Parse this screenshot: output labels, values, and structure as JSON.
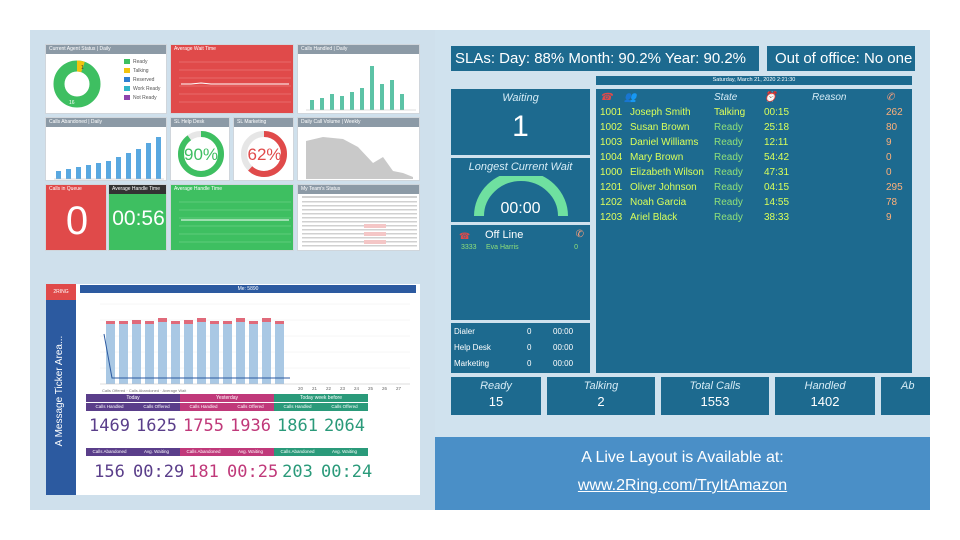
{
  "q1": {
    "panels": {
      "agent_status": "Current Agent Status | Daily",
      "avg_wait": "Average Wait Time",
      "calls_handled": "Calls Handled | Daily",
      "calls_abandoned": "Calls Abandoned | Daily",
      "sl_help_desk": "SL Help Desk",
      "sl_marketing": "SL Marketing",
      "daily_volume": "Daily Call Volume | Weekly",
      "calls_in_queue": "Calls in Queue",
      "avg_handle": "Average Handle Time",
      "avg_handle_chart": "Average Handle Time",
      "team_status": "My Team's Status"
    },
    "donut_top_value": "1",
    "donut_bottom_value": "16",
    "legend": [
      {
        "label": "Ready",
        "color": "#3ebf61"
      },
      {
        "label": "Talking",
        "color": "#f2c30f"
      },
      {
        "label": "Reserved",
        "color": "#2f7fd1"
      },
      {
        "label": "Work Ready",
        "color": "#2fb5c8"
      },
      {
        "label": "Not Ready",
        "color": "#8e44ad"
      }
    ],
    "sl_help_desk_value": "90%",
    "sl_marketing_value": "62%",
    "calls_in_queue_value": "0",
    "avg_handle_value": "00:56",
    "colors": {
      "red": "#e04a4a",
      "green": "#3ebf61",
      "teal": "#4bbf9f"
    }
  },
  "q3": {
    "ticker_label": "A Message Ticker Area...",
    "chart_title": "Me: 5890",
    "logo": "2RING",
    "y_left_label": "Calls Offered",
    "y_right_label": "Answered Seconds Time",
    "legend_offered": "Calls Offered",
    "legend_abandoned": "Calls Abandoned",
    "legend_avg": "Average Wait",
    "group_heads": [
      "Today",
      "Yesterday",
      "Today week before"
    ],
    "kpi_heads_top": [
      "Calls Handled",
      "Calls Offered",
      "Calls Handled",
      "Calls Offered",
      "Calls Handled",
      "Calls Offered"
    ],
    "kpi_values_top": [
      "1469",
      "1625",
      "1755",
      "1936",
      "1861",
      "2064"
    ],
    "kpi_heads_bottom": [
      "Calls Abandoned",
      "Avg. Waiting",
      "Calls Abandoned",
      "Avg. Waiting",
      "Calls Abandoned",
      "Avg. Waiting"
    ],
    "kpi_values_bottom": [
      "156",
      "00:29",
      "181",
      "00:25",
      "203",
      "00:24"
    ],
    "kpi_colors": [
      "#5a3e8a",
      "#5a3e8a",
      "#c0397a",
      "#c0397a",
      "#2a9a7a",
      "#2a9a7a"
    ]
  },
  "q2": {
    "banner_sla": "SLAs: Day: 88% Month: 90.2% Year: 90.2%",
    "banner_ooo": "Out of office: No one",
    "date_line": "Saturday, March 21, 2020 2:21:30",
    "waiting_label": "Waiting",
    "waiting_value": "1",
    "longest_wait_label": "Longest Current Wait",
    "longest_wait_value": "00:00",
    "offline_label": "Off Line",
    "offline_agent": {
      "ext": "3333",
      "name": "Eva Harris",
      "calls": "0"
    },
    "col_state": "State",
    "col_reason": "Reason",
    "agents": [
      {
        "id": "1001",
        "name": "Joseph Smith",
        "state": "Talking",
        "time": "00:15",
        "calls": "262"
      },
      {
        "id": "1002",
        "name": "Susan Brown",
        "state": "Ready",
        "time": "25:18",
        "calls": "80"
      },
      {
        "id": "1003",
        "name": "Daniel Williams",
        "state": "Ready",
        "time": "12:11",
        "calls": "9"
      },
      {
        "id": "1004",
        "name": "Mary Brown",
        "state": "Ready",
        "time": "54:42",
        "calls": "0"
      },
      {
        "id": "1000",
        "name": "Elizabeth Wilson",
        "state": "Ready",
        "time": "47:31",
        "calls": "0"
      },
      {
        "id": "1201",
        "name": "Oliver Johnson",
        "state": "Ready",
        "time": "04:15",
        "calls": "295"
      },
      {
        "id": "1202",
        "name": "Noah Garcia",
        "state": "Ready",
        "time": "14:55",
        "calls": "78"
      },
      {
        "id": "1203",
        "name": "Ariel Black",
        "state": "Ready",
        "time": "38:33",
        "calls": "9"
      }
    ],
    "queues": [
      {
        "name": "Dialer",
        "count": "0",
        "time": "00:00"
      },
      {
        "name": "Help Desk",
        "count": "0",
        "time": "00:00"
      },
      {
        "name": "Marketing",
        "count": "0",
        "time": "00:00"
      }
    ],
    "bottom_tiles": [
      {
        "label": "Ready",
        "value": "15"
      },
      {
        "label": "Talking",
        "value": "2"
      },
      {
        "label": "Total Calls",
        "value": "1553"
      },
      {
        "label": "Handled",
        "value": "1402"
      },
      {
        "label": "Ab",
        "value": ""
      }
    ]
  },
  "q4": {
    "caption": "A Live Layout is Available at:",
    "link": "www.2Ring.com/TryItAmazon"
  }
}
